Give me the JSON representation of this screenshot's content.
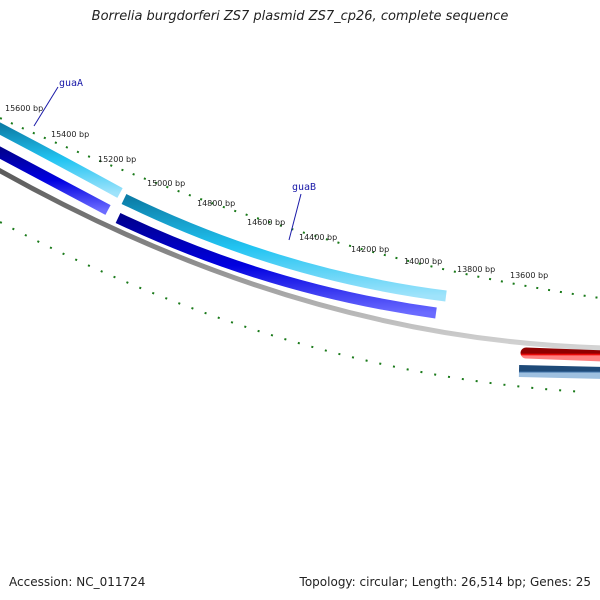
{
  "header": {
    "title": "Borrelia burgdorferi ZS7 plasmid ZS7_cp26, complete sequence"
  },
  "footer": {
    "accession": "Accession: NC_011724",
    "summary": "Topology: circular; Length: 26,514 bp; Genes: 25"
  },
  "scale": {
    "ticks": [
      "15600 bp",
      "15400 bp",
      "15200 bp",
      "15000 bp",
      "14800 bp",
      "14600 bp",
      "14400 bp",
      "14200 bp",
      "14000 bp",
      "13800 bp",
      "13600 bp"
    ]
  },
  "genes": [
    {
      "name": "guaA",
      "color": "#1ab4e6",
      "strand": "forward"
    },
    {
      "name": "guaB",
      "color": "#1ab4e6",
      "strand": "forward"
    }
  ],
  "colors": {
    "forward_gene": "#1ab4e6",
    "blue_gene": "#0000e0",
    "red_gene": "#e00000",
    "steel_gene": "#3b6ea0",
    "backbone": "#808080",
    "tick_marks": "#1a7a1a"
  }
}
